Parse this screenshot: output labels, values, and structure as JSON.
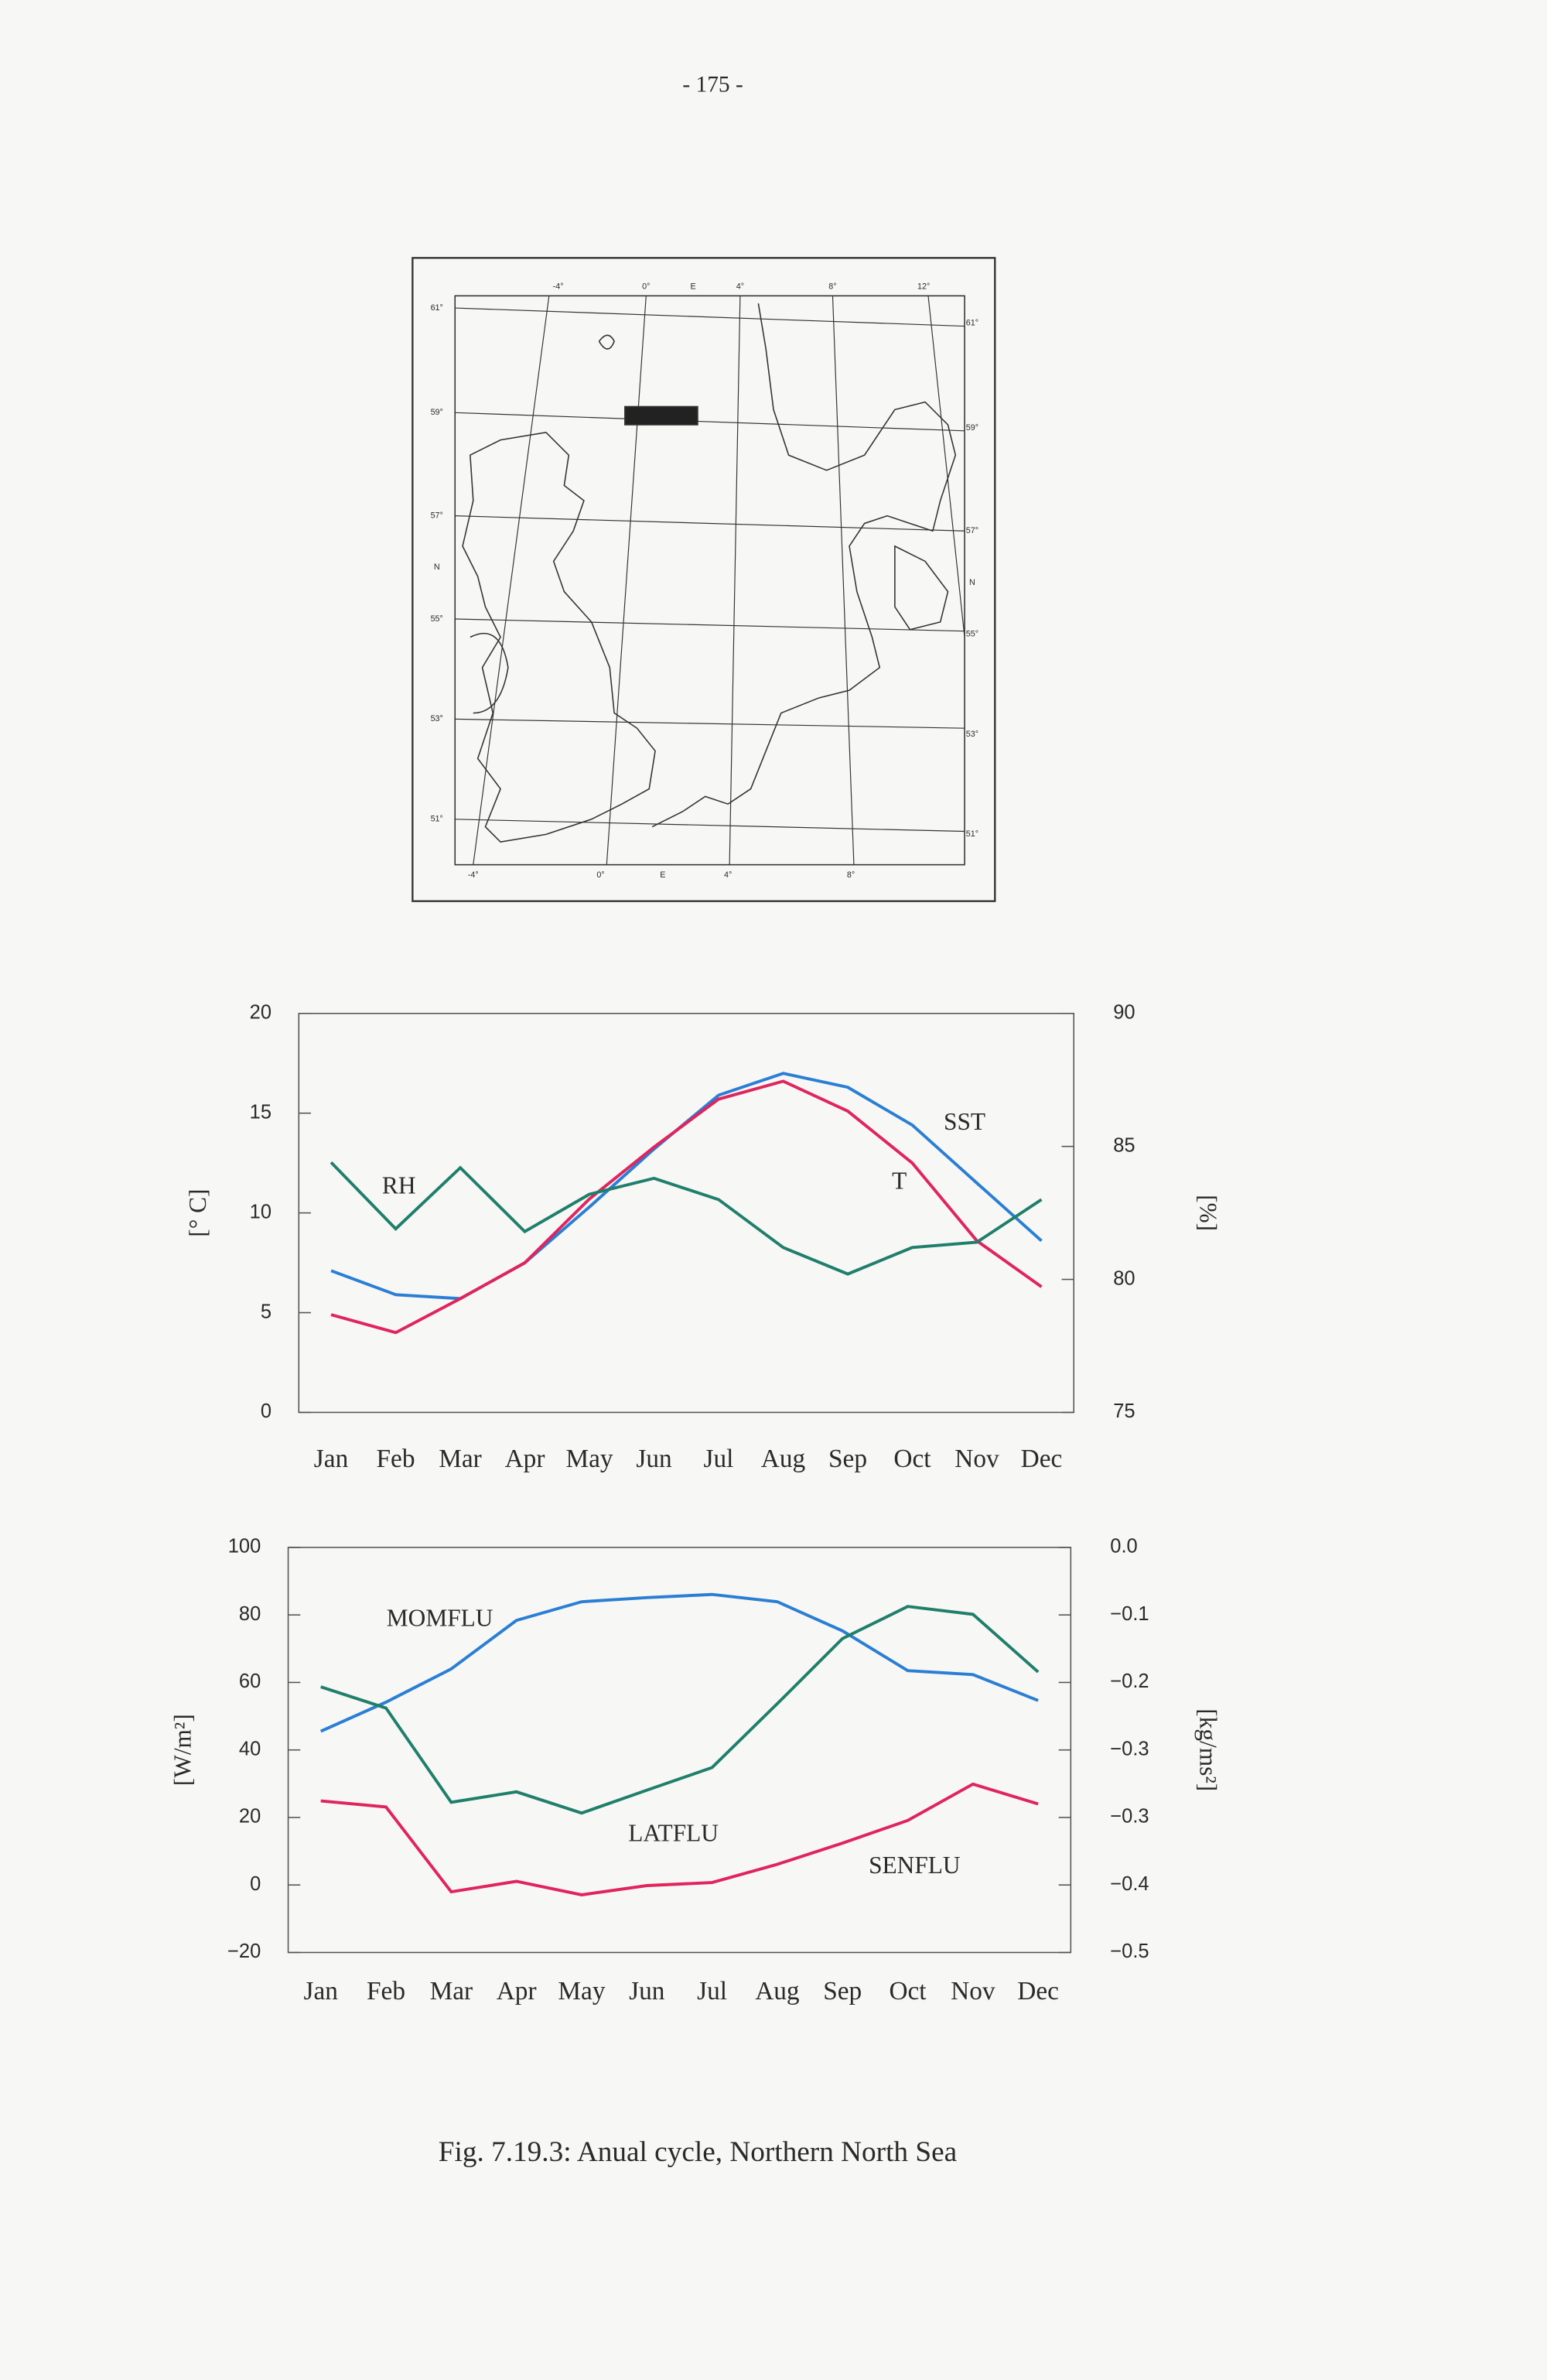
{
  "page_number": "- 175 -",
  "map": {
    "left_labels": [
      "61°",
      "59°",
      "57°",
      "N",
      "55°",
      "53°",
      "51°"
    ],
    "right_labels": [
      "61°",
      "59°",
      "57°",
      "N",
      "55°",
      "53°",
      "51°"
    ],
    "top_labels": [
      "-4°",
      "0°",
      "E",
      "4°",
      "8°",
      "12°"
    ],
    "bottom_labels": [
      "-4°",
      "0°",
      "E",
      "4°",
      "8°"
    ]
  },
  "chart_data": [
    {
      "type": "line",
      "categories": [
        "Jan",
        "Feb",
        "Mar",
        "Apr",
        "May",
        "Jun",
        "Jul",
        "Aug",
        "Sep",
        "Oct",
        "Nov",
        "Dec"
      ],
      "ylabel": "[° C]",
      "y2label": "[%]",
      "ylim": [
        0,
        20
      ],
      "yticks": [
        0,
        5,
        10,
        15,
        20
      ],
      "y2lim": [
        75,
        90
      ],
      "y2ticks": [
        75,
        80,
        85,
        90
      ],
      "series": [
        {
          "name": "SST",
          "color": "#2a7fd4",
          "values": [
            7.1,
            5.9,
            5.7,
            7.5,
            10.3,
            13.2,
            15.9,
            17.0,
            16.3,
            14.4,
            11.5,
            8.6
          ]
        },
        {
          "name": "T",
          "color": "#e0245e",
          "values": [
            4.9,
            4.0,
            5.7,
            7.5,
            10.7,
            13.3,
            15.7,
            16.6,
            15.1,
            12.5,
            8.6,
            6.3
          ]
        },
        {
          "name": "RH",
          "color": "#1f7f6a",
          "axis": "y2",
          "values": [
            84.4,
            81.9,
            84.2,
            81.8,
            83.2,
            83.8,
            83.0,
            81.2,
            80.2,
            81.2,
            81.4,
            83.0
          ]
        }
      ]
    },
    {
      "type": "line",
      "categories": [
        "Jan",
        "Feb",
        "Mar",
        "Apr",
        "May",
        "Jun",
        "Jul",
        "Aug",
        "Sep",
        "Oct",
        "Nov",
        "Dec"
      ],
      "ylabel": "[W/m²]",
      "y2label": "[kg/ms²]",
      "ylim": [
        -20,
        100
      ],
      "yticks": [
        {
          "value": -20,
          "label": "−20"
        },
        0,
        20,
        40,
        60,
        80,
        100
      ],
      "y2lim": [
        -0.5,
        0
      ],
      "y2ticks": [
        {
          "value": -0.5,
          "label": "−0.5"
        },
        {
          "value": -0.416667,
          "label": "−0.4"
        },
        {
          "value": -0.333333,
          "label": "−0.3"
        },
        {
          "value": -0.25,
          "label": "−0.3"
        },
        {
          "value": -0.166667,
          "label": "−0.2"
        },
        {
          "value": -0.083333,
          "label": "−0.1"
        },
        {
          "value": 0,
          "label": "0.0"
        }
      ],
      "series": [
        {
          "name": "MOMFLU",
          "color": "#2a7fd4",
          "axis": "y2",
          "values": [
            -0.227,
            -0.191,
            -0.15,
            -0.09,
            -0.067,
            -0.062,
            -0.058,
            -0.067,
            -0.103,
            -0.152,
            -0.157,
            -0.189
          ]
        },
        {
          "name": "LATFLU",
          "color": "#1f7f6a",
          "values": [
            58.7,
            52.4,
            24.5,
            27.6,
            21.3,
            28.1,
            34.8,
            53.7,
            73.0,
            82.5,
            80.2,
            63.1
          ]
        },
        {
          "name": "SENFLU",
          "color": "#e0245e",
          "values": [
            24.9,
            23.1,
            -2.0,
            1.1,
            -2.9,
            -0.2,
            0.7,
            6.1,
            12.4,
            19.1,
            29.9,
            24.0
          ]
        }
      ]
    }
  ],
  "caption": "Fig. 7.19.3:  Anual cycle, Northern North Sea"
}
